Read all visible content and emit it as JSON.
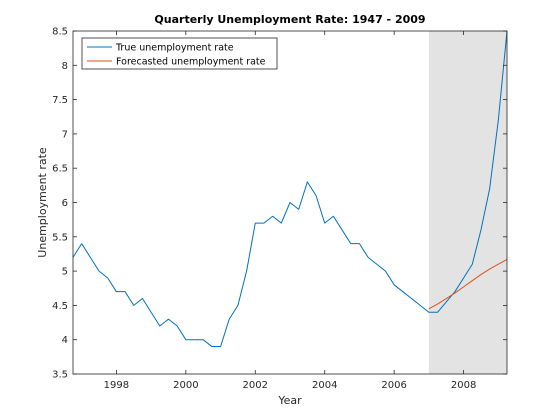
{
  "chart_data": {
    "type": "line",
    "title": "Quarterly Unemployment Rate: 1947 - 2009",
    "xlabel": "Year",
    "ylabel": "Unemployment rate",
    "xlim": [
      1996.75,
      2009.25
    ],
    "ylim": [
      3.5,
      8.5
    ],
    "xticks": [
      1998,
      2000,
      2002,
      2004,
      2006,
      2008
    ],
    "yticks": [
      3.5,
      4,
      4.5,
      5,
      5.5,
      6,
      6.5,
      7,
      7.5,
      8,
      8.5
    ],
    "shaded_region": {
      "x": [
        2007.0,
        2009.25
      ],
      "color": "#e3e3e3"
    },
    "legend_position": "top-left",
    "series": [
      {
        "name": "True unemployment rate",
        "color": "#0072bd",
        "points": [
          [
            1996.75,
            5.2
          ],
          [
            1997.0,
            5.4
          ],
          [
            1997.25,
            5.2
          ],
          [
            1997.5,
            5.0
          ],
          [
            1997.75,
            4.9
          ],
          [
            1998.0,
            4.7
          ],
          [
            1998.25,
            4.7
          ],
          [
            1998.5,
            4.5
          ],
          [
            1998.75,
            4.6
          ],
          [
            1999.0,
            4.4
          ],
          [
            1999.25,
            4.2
          ],
          [
            1999.5,
            4.3
          ],
          [
            1999.75,
            4.2
          ],
          [
            2000.0,
            4.0
          ],
          [
            2000.25,
            4.0
          ],
          [
            2000.5,
            4.0
          ],
          [
            2000.75,
            3.9
          ],
          [
            2001.0,
            3.9
          ],
          [
            2001.25,
            4.3
          ],
          [
            2001.5,
            4.5
          ],
          [
            2001.75,
            5.0
          ],
          [
            2002.0,
            5.7
          ],
          [
            2002.25,
            5.7
          ],
          [
            2002.5,
            5.8
          ],
          [
            2002.75,
            5.7
          ],
          [
            2003.0,
            6.0
          ],
          [
            2003.25,
            5.9
          ],
          [
            2003.5,
            6.3
          ],
          [
            2003.75,
            6.1
          ],
          [
            2004.0,
            5.7
          ],
          [
            2004.25,
            5.8
          ],
          [
            2004.5,
            5.6
          ],
          [
            2004.75,
            5.4
          ],
          [
            2005.0,
            5.4
          ],
          [
            2005.25,
            5.2
          ],
          [
            2005.5,
            5.1
          ],
          [
            2005.75,
            5.0
          ],
          [
            2006.0,
            4.8
          ],
          [
            2006.25,
            4.7
          ],
          [
            2006.5,
            4.6
          ],
          [
            2006.75,
            4.5
          ],
          [
            2007.0,
            4.4
          ],
          [
            2007.25,
            4.4
          ],
          [
            2007.5,
            4.55
          ],
          [
            2007.75,
            4.7
          ],
          [
            2008.0,
            4.9
          ],
          [
            2008.25,
            5.1
          ],
          [
            2008.5,
            5.6
          ],
          [
            2008.75,
            6.2
          ],
          [
            2009.0,
            7.2
          ],
          [
            2009.25,
            8.5
          ]
        ]
      },
      {
        "name": "Forecasted unemployment rate",
        "color": "#d95319",
        "points": [
          [
            2007.0,
            4.45
          ],
          [
            2007.25,
            4.52
          ],
          [
            2007.5,
            4.6
          ],
          [
            2007.75,
            4.68
          ],
          [
            2008.0,
            4.77
          ],
          [
            2008.25,
            4.86
          ],
          [
            2008.5,
            4.95
          ],
          [
            2008.75,
            5.03
          ],
          [
            2009.0,
            5.1
          ],
          [
            2009.25,
            5.17
          ]
        ]
      }
    ]
  }
}
